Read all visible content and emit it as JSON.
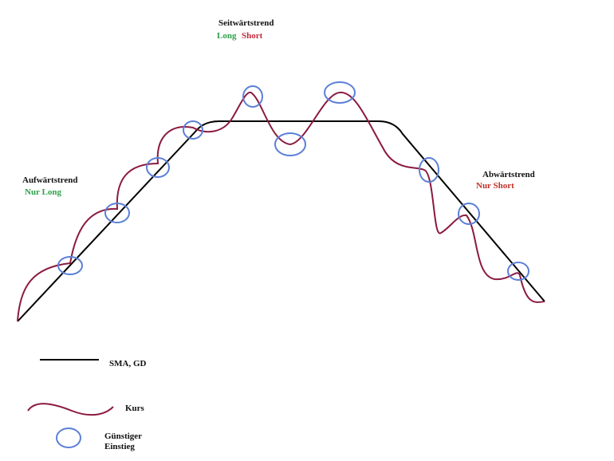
{
  "labels": {
    "sideways": {
      "title": "Seitwärtstrend",
      "long": "Long",
      "short": "Short"
    },
    "uptrend": {
      "title": "Aufwärtstrend",
      "note": "Nur Long"
    },
    "downtrend": {
      "title": "Abwärtstrend",
      "note": "Nur Short"
    }
  },
  "legend": {
    "sma": "SMA, GD",
    "price": "Kurs",
    "entry": [
      "Günstiger",
      "Einstieg"
    ]
  }
}
